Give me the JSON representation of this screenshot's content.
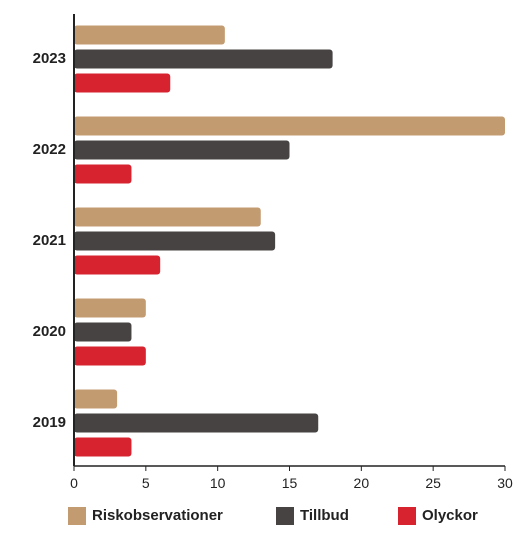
{
  "chart_data": {
    "type": "bar",
    "orientation": "horizontal",
    "categories": [
      "2023",
      "2022",
      "2021",
      "2020",
      "2019"
    ],
    "series": [
      {
        "name": "Riskobservationer",
        "color": "#c39b70",
        "values": [
          10.5,
          30,
          13,
          5,
          3
        ]
      },
      {
        "name": "Tillbud",
        "color": "#464342",
        "values": [
          18,
          15,
          14,
          4,
          17
        ]
      },
      {
        "name": "Olyckor",
        "color": "#d6232f",
        "values": [
          6.7,
          4,
          6,
          5,
          4
        ]
      }
    ],
    "xlim": [
      0,
      30
    ],
    "xticks": [
      "0",
      "5",
      "10",
      "15",
      "20",
      "25",
      "30"
    ],
    "title": "",
    "xlabel": "",
    "ylabel": "",
    "grid": false,
    "legend_position": "bottom"
  }
}
